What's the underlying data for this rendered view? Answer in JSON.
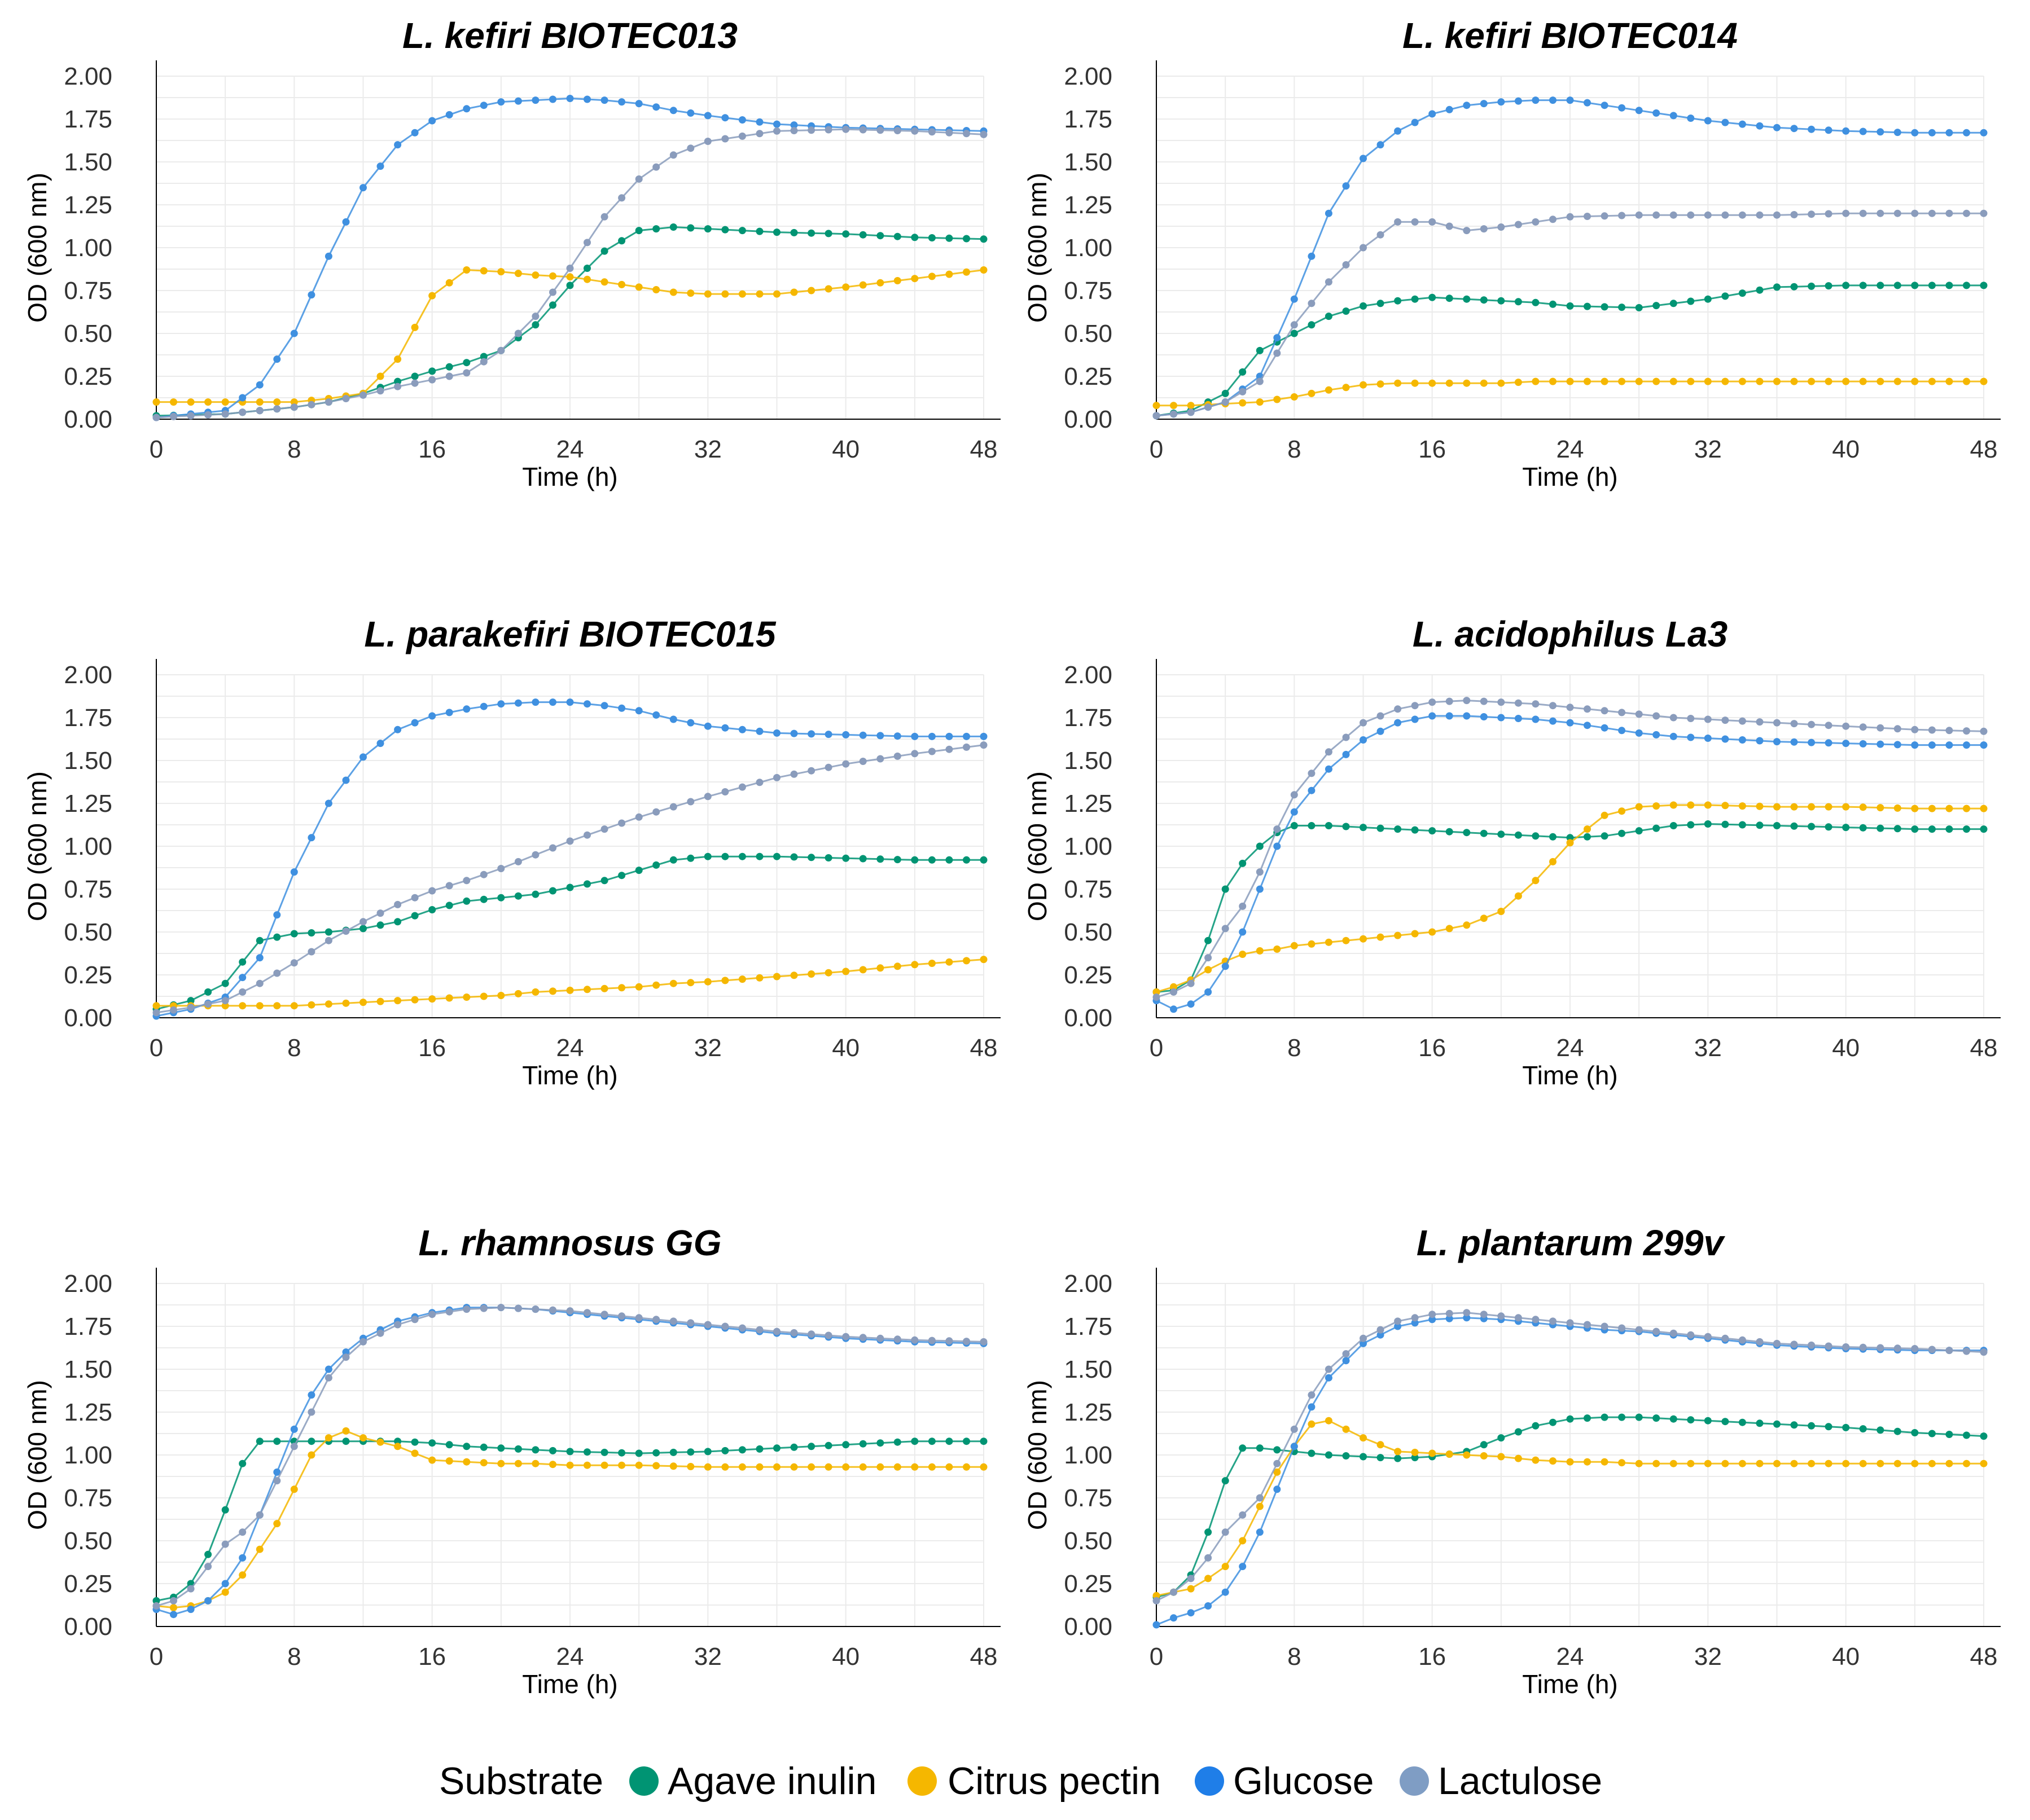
{
  "chart_data": [
    {
      "type": "line",
      "title": "L. kefiri BIOTEC013",
      "xlabel": "Time (h)",
      "ylabel": "OD (600 nm)",
      "xlim": [
        0,
        48
      ],
      "ylim": [
        0,
        2
      ],
      "x_ticks": [
        "0",
        "8",
        "16",
        "24",
        "32",
        "40",
        "48"
      ],
      "y_ticks": [
        "0.00",
        "0.25",
        "0.50",
        "0.75",
        "1.00",
        "1.25",
        "1.50",
        "1.75",
        "2.00"
      ],
      "x": [
        0,
        4,
        6,
        8,
        10,
        12,
        14,
        16,
        18,
        20,
        22,
        24,
        26,
        28,
        30,
        32,
        36,
        40,
        44,
        48
      ],
      "series": [
        {
          "name": "Agave inulin",
          "values": [
            0.02,
            0.03,
            0.05,
            0.07,
            0.1,
            0.15,
            0.22,
            0.28,
            0.33,
            0.4,
            0.55,
            0.78,
            0.98,
            1.1,
            1.12,
            1.11,
            1.09,
            1.08,
            1.06,
            1.05
          ]
        },
        {
          "name": "Citrus pectin",
          "values": [
            0.1,
            0.1,
            0.1,
            0.1,
            0.12,
            0.15,
            0.35,
            0.72,
            0.87,
            0.86,
            0.84,
            0.83,
            0.8,
            0.77,
            0.74,
            0.73,
            0.73,
            0.77,
            0.82,
            0.87
          ]
        },
        {
          "name": "Glucose",
          "values": [
            0.01,
            0.05,
            0.2,
            0.5,
            0.95,
            1.35,
            1.6,
            1.74,
            1.81,
            1.85,
            1.86,
            1.87,
            1.86,
            1.84,
            1.8,
            1.77,
            1.72,
            1.7,
            1.69,
            1.68
          ]
        },
        {
          "name": "Lactulose",
          "values": [
            0.01,
            0.03,
            0.05,
            0.07,
            0.1,
            0.14,
            0.19,
            0.23,
            0.27,
            0.4,
            0.6,
            0.88,
            1.18,
            1.4,
            1.54,
            1.62,
            1.68,
            1.69,
            1.68,
            1.66
          ]
        }
      ]
    },
    {
      "type": "line",
      "title": "L. kefiri BIOTEC014",
      "xlabel": "Time (h)",
      "ylabel": "OD (600 nm)",
      "xlim": [
        0,
        48
      ],
      "ylim": [
        0,
        2
      ],
      "x_ticks": [
        "0",
        "8",
        "16",
        "24",
        "32",
        "40",
        "48"
      ],
      "y_ticks": [
        "0.00",
        "0.25",
        "0.50",
        "0.75",
        "1.00",
        "1.25",
        "1.50",
        "1.75",
        "2.00"
      ],
      "x": [
        0,
        2,
        4,
        6,
        8,
        10,
        12,
        14,
        16,
        18,
        20,
        22,
        24,
        28,
        32,
        36,
        40,
        44,
        48
      ],
      "series": [
        {
          "name": "Agave inulin",
          "values": [
            0.02,
            0.05,
            0.15,
            0.4,
            0.5,
            0.6,
            0.66,
            0.69,
            0.71,
            0.7,
            0.69,
            0.68,
            0.66,
            0.65,
            0.7,
            0.77,
            0.78,
            0.78,
            0.78
          ]
        },
        {
          "name": "Citrus pectin",
          "values": [
            0.08,
            0.08,
            0.09,
            0.1,
            0.13,
            0.17,
            0.2,
            0.21,
            0.21,
            0.21,
            0.21,
            0.22,
            0.22,
            0.22,
            0.22,
            0.22,
            0.22,
            0.22,
            0.22
          ]
        },
        {
          "name": "Glucose",
          "values": [
            0.02,
            0.04,
            0.1,
            0.25,
            0.7,
            1.2,
            1.52,
            1.68,
            1.78,
            1.83,
            1.85,
            1.86,
            1.86,
            1.8,
            1.74,
            1.7,
            1.68,
            1.67,
            1.67
          ]
        },
        {
          "name": "Lactulose",
          "values": [
            0.02,
            0.04,
            0.1,
            0.22,
            0.55,
            0.8,
            1.0,
            1.15,
            1.15,
            1.1,
            1.12,
            1.15,
            1.18,
            1.19,
            1.19,
            1.19,
            1.2,
            1.2,
            1.2
          ]
        }
      ]
    },
    {
      "type": "line",
      "title": "L. parakefiri BIOTEC015",
      "xlabel": "Time (h)",
      "ylabel": "OD (600 nm)",
      "xlim": [
        0,
        48
      ],
      "ylim": [
        0,
        2
      ],
      "x_ticks": [
        "0",
        "8",
        "16",
        "24",
        "32",
        "40",
        "48"
      ],
      "y_ticks": [
        "0.00",
        "0.25",
        "0.50",
        "0.75",
        "1.00",
        "1.25",
        "1.50",
        "1.75",
        "2.00"
      ],
      "x": [
        0,
        2,
        4,
        6,
        8,
        10,
        12,
        14,
        16,
        18,
        20,
        22,
        24,
        26,
        28,
        30,
        32,
        36,
        40,
        44,
        48
      ],
      "series": [
        {
          "name": "Agave inulin",
          "values": [
            0.05,
            0.1,
            0.2,
            0.45,
            0.49,
            0.5,
            0.52,
            0.56,
            0.63,
            0.68,
            0.7,
            0.72,
            0.76,
            0.8,
            0.86,
            0.92,
            0.94,
            0.94,
            0.93,
            0.92,
            0.92
          ]
        },
        {
          "name": "Citrus pectin",
          "values": [
            0.07,
            0.07,
            0.07,
            0.07,
            0.07,
            0.08,
            0.09,
            0.1,
            0.11,
            0.12,
            0.13,
            0.15,
            0.16,
            0.17,
            0.18,
            0.2,
            0.21,
            0.24,
            0.27,
            0.31,
            0.34
          ]
        },
        {
          "name": "Glucose",
          "values": [
            0.01,
            0.05,
            0.12,
            0.35,
            0.85,
            1.25,
            1.52,
            1.68,
            1.76,
            1.8,
            1.83,
            1.84,
            1.84,
            1.82,
            1.79,
            1.74,
            1.7,
            1.66,
            1.65,
            1.64,
            1.64
          ]
        },
        {
          "name": "Lactulose",
          "values": [
            0.03,
            0.06,
            0.1,
            0.2,
            0.32,
            0.45,
            0.56,
            0.66,
            0.74,
            0.8,
            0.87,
            0.95,
            1.03,
            1.1,
            1.17,
            1.23,
            1.29,
            1.4,
            1.48,
            1.54,
            1.59
          ]
        }
      ]
    },
    {
      "type": "line",
      "title": "L. acidophilus La3",
      "xlabel": "Time (h)",
      "ylabel": "OD (600 nm)",
      "xlim": [
        0,
        48
      ],
      "ylim": [
        0,
        2
      ],
      "x_ticks": [
        "0",
        "8",
        "16",
        "24",
        "32",
        "40",
        "48"
      ],
      "y_ticks": [
        "0.00",
        "0.25",
        "0.50",
        "0.75",
        "1.00",
        "1.25",
        "1.50",
        "1.75",
        "2.00"
      ],
      "x": [
        0,
        1,
        2,
        3,
        4,
        5,
        6,
        7,
        8,
        10,
        12,
        14,
        16,
        18,
        20,
        22,
        24,
        26,
        28,
        30,
        32,
        36,
        40,
        44,
        48
      ],
      "series": [
        {
          "name": "Agave inulin",
          "values": [
            0.15,
            0.16,
            0.22,
            0.45,
            0.75,
            0.9,
            1.0,
            1.08,
            1.12,
            1.12,
            1.11,
            1.1,
            1.09,
            1.08,
            1.07,
            1.06,
            1.05,
            1.06,
            1.09,
            1.12,
            1.13,
            1.12,
            1.11,
            1.1,
            1.1
          ]
        },
        {
          "name": "Citrus pectin",
          "values": [
            0.15,
            0.18,
            0.22,
            0.28,
            0.33,
            0.37,
            0.39,
            0.4,
            0.42,
            0.44,
            0.46,
            0.48,
            0.5,
            0.54,
            0.62,
            0.8,
            1.02,
            1.18,
            1.23,
            1.24,
            1.24,
            1.23,
            1.23,
            1.22,
            1.22
          ]
        },
        {
          "name": "Glucose",
          "values": [
            0.1,
            0.05,
            0.08,
            0.15,
            0.3,
            0.5,
            0.75,
            1.0,
            1.2,
            1.45,
            1.62,
            1.72,
            1.76,
            1.76,
            1.75,
            1.74,
            1.72,
            1.69,
            1.66,
            1.64,
            1.63,
            1.61,
            1.6,
            1.59,
            1.59
          ]
        },
        {
          "name": "Lactulose",
          "values": [
            0.12,
            0.15,
            0.2,
            0.35,
            0.52,
            0.65,
            0.85,
            1.1,
            1.3,
            1.55,
            1.72,
            1.8,
            1.84,
            1.85,
            1.84,
            1.83,
            1.81,
            1.79,
            1.77,
            1.75,
            1.74,
            1.72,
            1.7,
            1.68,
            1.67
          ]
        }
      ]
    },
    {
      "type": "line",
      "title": "L. rhamnosus GG",
      "xlabel": "Time (h)",
      "ylabel": "OD (600 nm)",
      "xlim": [
        0,
        48
      ],
      "ylim": [
        0,
        2
      ],
      "x_ticks": [
        "0",
        "8",
        "16",
        "24",
        "32",
        "40",
        "48"
      ],
      "y_ticks": [
        "0.00",
        "0.25",
        "0.50",
        "0.75",
        "1.00",
        "1.25",
        "1.50",
        "1.75",
        "2.00"
      ],
      "x": [
        0,
        1,
        2,
        3,
        4,
        5,
        6,
        7,
        8,
        9,
        10,
        11,
        12,
        14,
        16,
        18,
        20,
        22,
        24,
        28,
        32,
        36,
        40,
        44,
        48
      ],
      "series": [
        {
          "name": "Agave inulin",
          "values": [
            0.15,
            0.17,
            0.25,
            0.42,
            0.68,
            0.95,
            1.08,
            1.08,
            1.08,
            1.08,
            1.08,
            1.08,
            1.08,
            1.08,
            1.07,
            1.05,
            1.04,
            1.03,
            1.02,
            1.01,
            1.02,
            1.04,
            1.06,
            1.08,
            1.08
          ]
        },
        {
          "name": "Citrus pectin",
          "values": [
            0.12,
            0.11,
            0.12,
            0.15,
            0.2,
            0.3,
            0.45,
            0.6,
            0.8,
            1.0,
            1.1,
            1.14,
            1.1,
            1.05,
            0.97,
            0.96,
            0.95,
            0.95,
            0.94,
            0.94,
            0.93,
            0.93,
            0.93,
            0.93,
            0.93
          ]
        },
        {
          "name": "Glucose",
          "values": [
            0.1,
            0.07,
            0.1,
            0.15,
            0.25,
            0.4,
            0.65,
            0.9,
            1.15,
            1.35,
            1.5,
            1.6,
            1.68,
            1.78,
            1.83,
            1.86,
            1.86,
            1.85,
            1.83,
            1.79,
            1.75,
            1.71,
            1.68,
            1.66,
            1.65
          ]
        },
        {
          "name": "Lactulose",
          "values": [
            0.12,
            0.15,
            0.22,
            0.35,
            0.48,
            0.55,
            0.65,
            0.85,
            1.05,
            1.25,
            1.45,
            1.57,
            1.66,
            1.76,
            1.82,
            1.85,
            1.86,
            1.85,
            1.84,
            1.8,
            1.76,
            1.72,
            1.69,
            1.67,
            1.66
          ]
        }
      ]
    },
    {
      "type": "line",
      "title": "L. plantarum 299v",
      "xlabel": "Time (h)",
      "ylabel": "OD (600 nm)",
      "xlim": [
        0,
        48
      ],
      "ylim": [
        0,
        2
      ],
      "x_ticks": [
        "0",
        "8",
        "16",
        "24",
        "32",
        "40",
        "48"
      ],
      "y_ticks": [
        "0.00",
        "0.25",
        "0.50",
        "0.75",
        "1.00",
        "1.25",
        "1.50",
        "1.75",
        "2.00"
      ],
      "x": [
        0,
        1,
        2,
        3,
        4,
        5,
        6,
        7,
        8,
        9,
        10,
        12,
        14,
        16,
        18,
        20,
        22,
        24,
        26,
        28,
        32,
        36,
        40,
        44,
        48
      ],
      "series": [
        {
          "name": "Agave inulin",
          "values": [
            0.17,
            0.2,
            0.3,
            0.55,
            0.85,
            1.04,
            1.04,
            1.03,
            1.02,
            1.01,
            1.0,
            0.99,
            0.98,
            0.99,
            1.02,
            1.1,
            1.17,
            1.21,
            1.22,
            1.22,
            1.2,
            1.18,
            1.16,
            1.13,
            1.11
          ]
        },
        {
          "name": "Citrus pectin",
          "values": [
            0.18,
            0.2,
            0.22,
            0.28,
            0.35,
            0.5,
            0.7,
            0.9,
            1.05,
            1.18,
            1.2,
            1.1,
            1.02,
            1.01,
            1.0,
            0.99,
            0.97,
            0.96,
            0.96,
            0.95,
            0.95,
            0.95,
            0.95,
            0.95,
            0.95
          ]
        },
        {
          "name": "Glucose",
          "values": [
            0.01,
            0.05,
            0.08,
            0.12,
            0.2,
            0.35,
            0.55,
            0.8,
            1.05,
            1.28,
            1.45,
            1.65,
            1.75,
            1.79,
            1.8,
            1.79,
            1.77,
            1.75,
            1.73,
            1.72,
            1.68,
            1.64,
            1.62,
            1.61,
            1.61
          ]
        },
        {
          "name": "Lactulose",
          "values": [
            0.15,
            0.2,
            0.28,
            0.4,
            0.55,
            0.65,
            0.75,
            0.95,
            1.15,
            1.35,
            1.5,
            1.68,
            1.78,
            1.82,
            1.83,
            1.81,
            1.79,
            1.77,
            1.75,
            1.73,
            1.69,
            1.65,
            1.63,
            1.62,
            1.6
          ]
        }
      ]
    }
  ],
  "legend": {
    "title": "Substrate",
    "items": [
      {
        "name": "Agave inulin",
        "color": "#009473"
      },
      {
        "name": "Citrus pectin",
        "color": "#f5b700"
      },
      {
        "name": "Glucose",
        "color": "#1f7ee8"
      },
      {
        "name": "Lactulose",
        "color": "#7f9dc4"
      }
    ]
  },
  "colors": {
    "Agave inulin": "#009473",
    "Citrus pectin": "#f5b700",
    "Glucose": "#3f90e0",
    "Lactulose": "#8a9cbc"
  }
}
